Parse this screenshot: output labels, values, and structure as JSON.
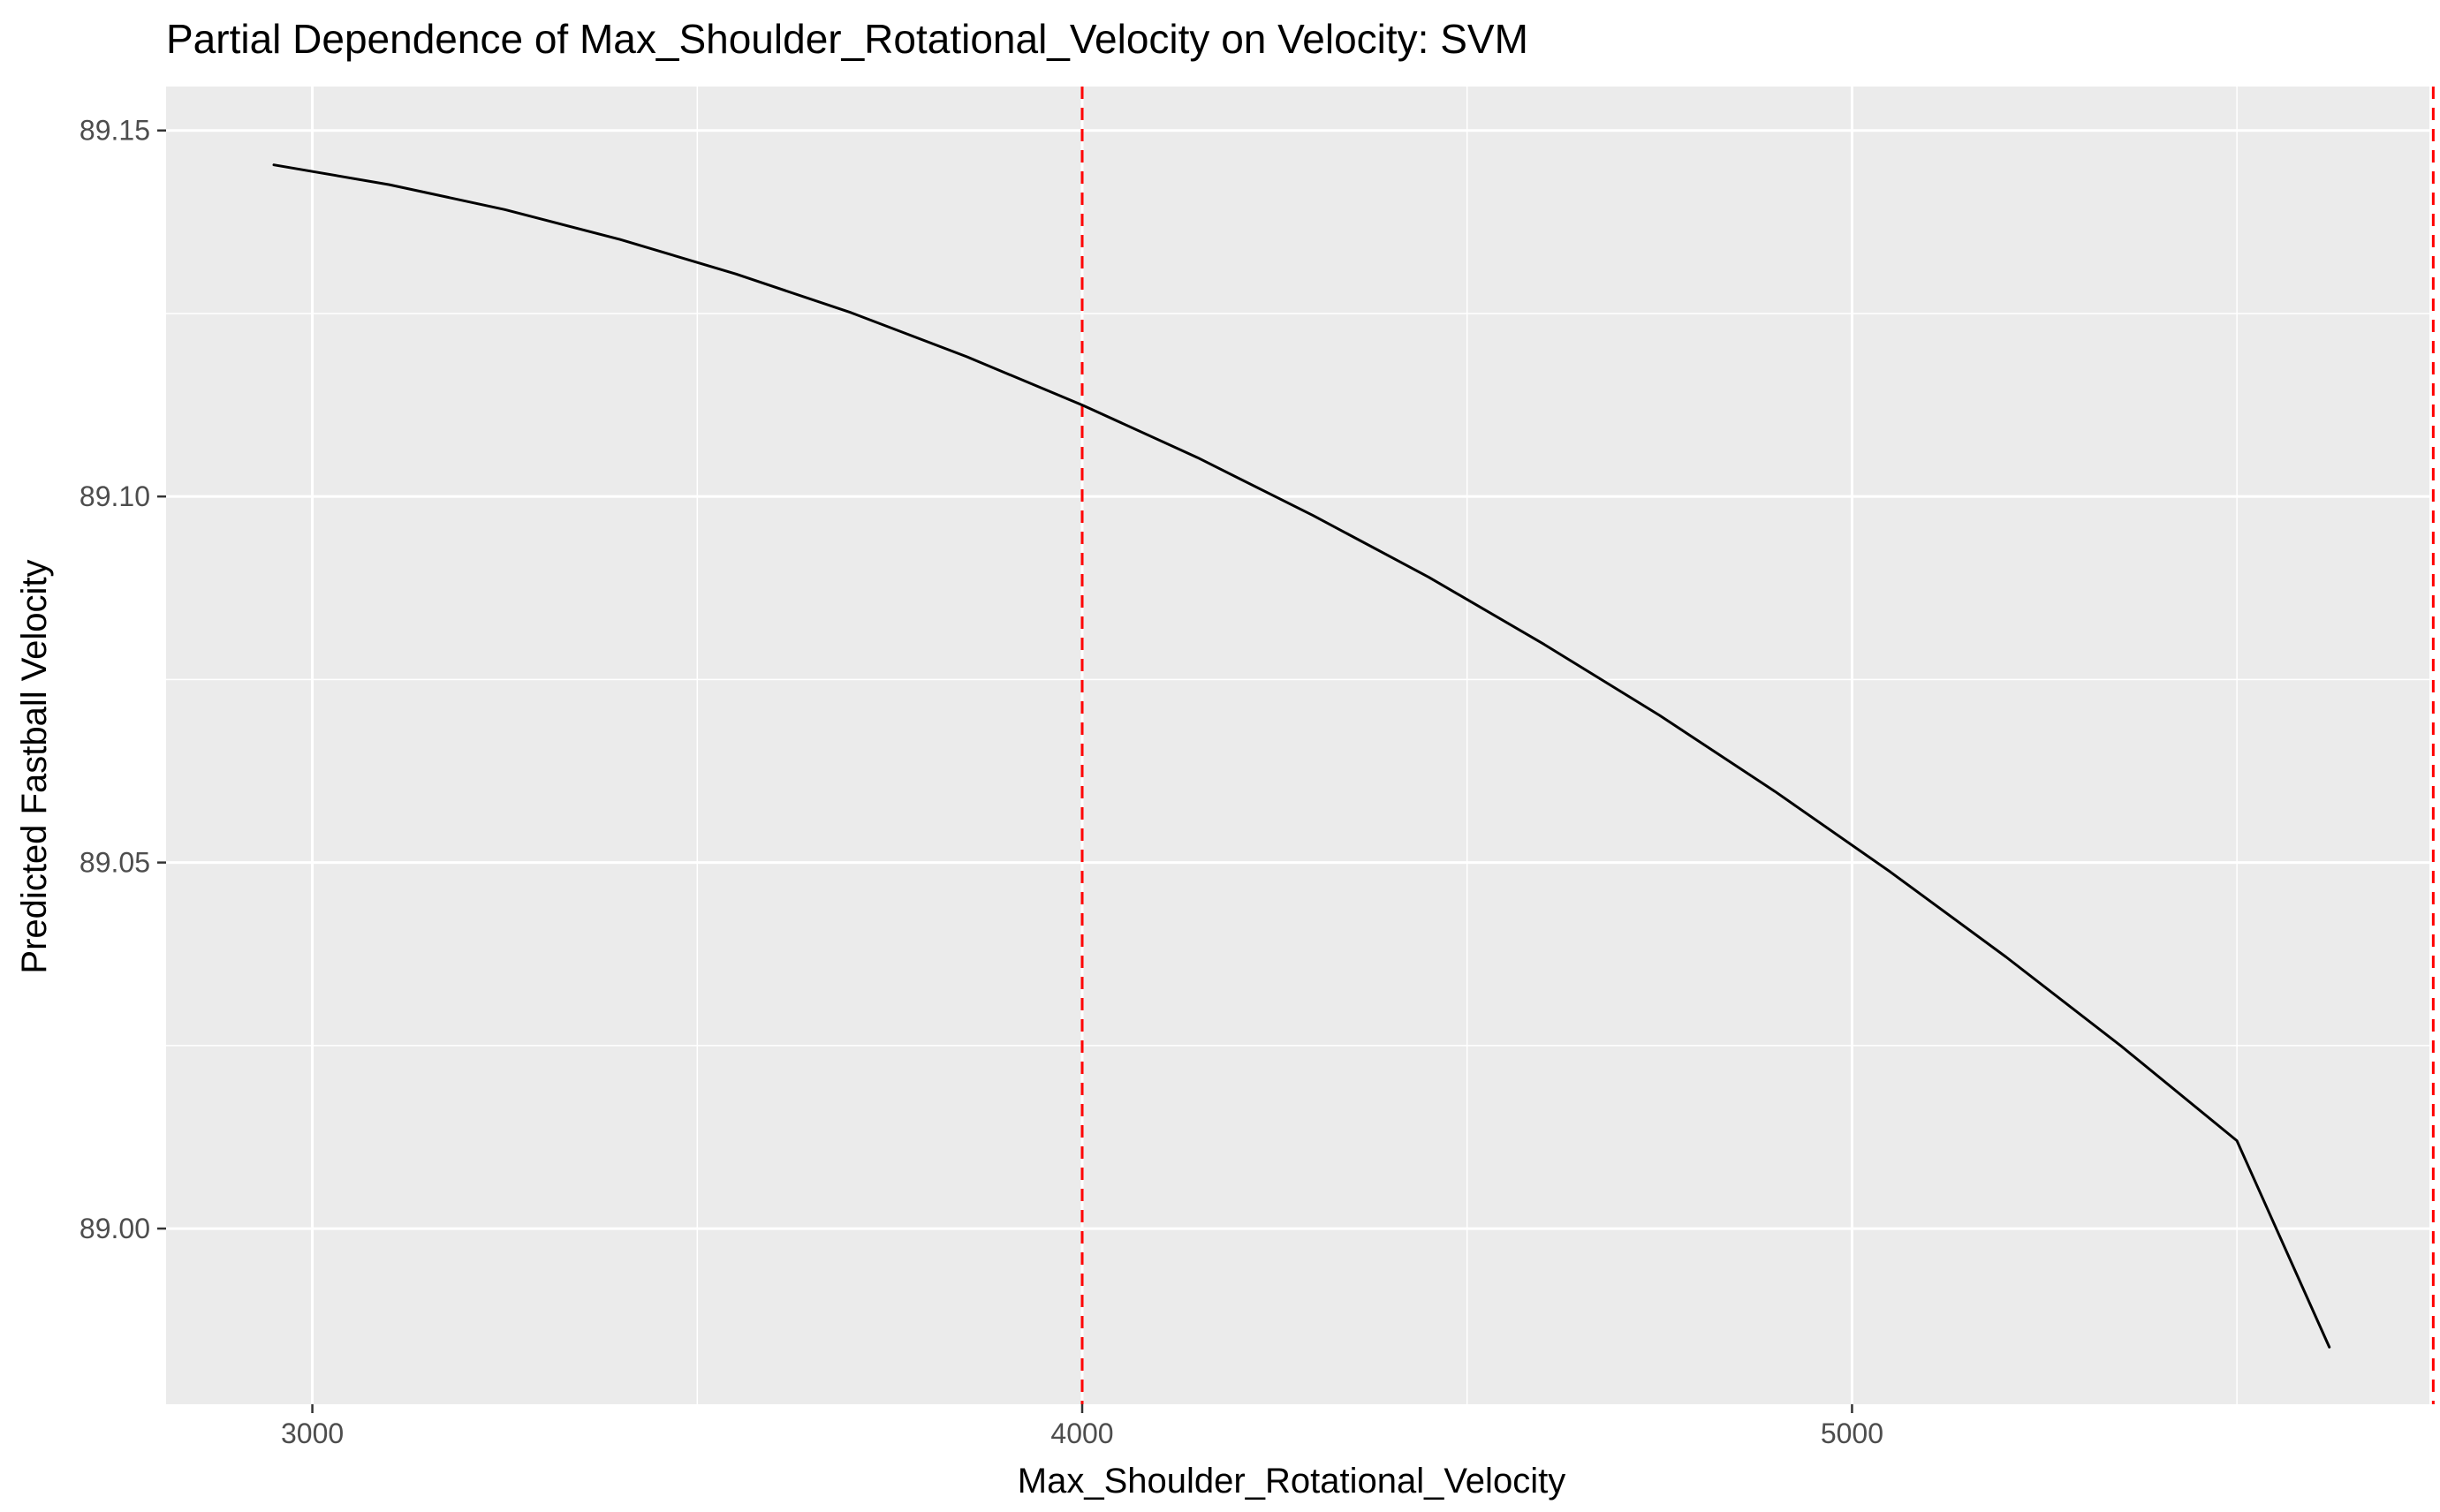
{
  "chart_data": {
    "type": "line",
    "title": "Partial Dependence of Max_Shoulder_Rotational_Velocity on Velocity: SVM",
    "xlabel": "Max_Shoulder_Rotational_Velocity",
    "ylabel": "Predicted Fastball Velocity",
    "xlim": [
      2810,
      5750
    ],
    "ylim": [
      88.976,
      89.156
    ],
    "x_ticks": [
      3000,
      4000,
      5000
    ],
    "x_tick_labels": [
      "3000",
      "4000",
      "5000"
    ],
    "y_ticks": [
      89.0,
      89.05,
      89.1,
      89.15
    ],
    "y_tick_labels": [
      "89.00",
      "89.05",
      "89.10",
      "89.15"
    ],
    "grid": true,
    "background": "#ebebeb",
    "grid_color": "#ffffff",
    "line_color": "#000000",
    "series": [
      {
        "x": [
          2950,
          3100,
          3250,
          3400,
          3550,
          3700,
          3850,
          4000,
          4150,
          4300,
          4450,
          4600,
          4750,
          4900,
          5050,
          5200,
          5350,
          5500,
          5620
        ],
        "values": [
          89.1453,
          89.1426,
          89.1392,
          89.1351,
          89.1304,
          89.1251,
          89.1191,
          89.1125,
          89.1053,
          89.0974,
          89.089,
          89.0798,
          89.0701,
          89.0597,
          89.0487,
          89.0371,
          89.0249,
          89.012,
          88.9838
        ]
      }
    ],
    "reference_lines": [
      {
        "x": 4000,
        "color": "#ff0000",
        "style": "dashed"
      },
      {
        "x": 5755,
        "color": "#ff0000",
        "style": "dashed"
      }
    ]
  }
}
